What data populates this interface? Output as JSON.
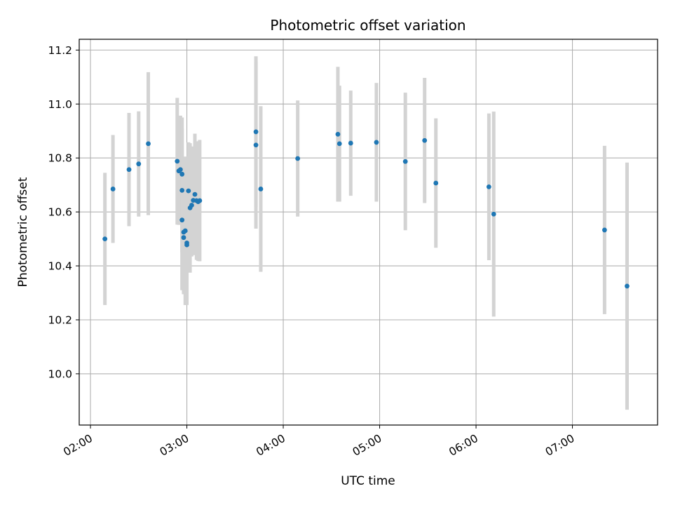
{
  "chart_data": {
    "type": "scatter",
    "title": "Photometric offset variation",
    "xlabel": "UTC time",
    "ylabel": "Photometric offset",
    "x_ticks": [
      "02:00",
      "03:00",
      "04:00",
      "05:00",
      "06:00",
      "07:00"
    ],
    "y_ticks": [
      "10.0",
      "10.2",
      "10.4",
      "10.6",
      "10.8",
      "11.0",
      "11.2"
    ],
    "xlim": [
      "01:53",
      "07:53"
    ],
    "ylim": [
      9.81,
      11.24
    ],
    "grid": true,
    "colors": {
      "points": "#1f77b4",
      "errorbars": "#d3d3d3",
      "grid": "#b0b0b0"
    },
    "points": [
      {
        "x": "02:09",
        "y": 10.5,
        "err": 0.245
      },
      {
        "x": "02:14",
        "y": 10.685,
        "err": 0.2
      },
      {
        "x": "02:24",
        "y": 10.757,
        "err": 0.21
      },
      {
        "x": "02:30",
        "y": 10.778,
        "err": 0.195
      },
      {
        "x": "02:36",
        "y": 10.853,
        "err": 0.265
      },
      {
        "x": "02:54",
        "y": 10.788,
        "err": 0.235
      },
      {
        "x": "02:55",
        "y": 10.752,
        "err": 0.2
      },
      {
        "x": "02:56",
        "y": 10.757,
        "err": 0.2
      },
      {
        "x": "02:57",
        "y": 10.74,
        "err": 0.21
      },
      {
        "x": "02:57",
        "y": 10.68,
        "err": 0.23
      },
      {
        "x": "02:57",
        "y": 10.57,
        "err": 0.26
      },
      {
        "x": "02:58",
        "y": 10.505,
        "err": 0.21
      },
      {
        "x": "02:58",
        "y": 10.525,
        "err": 0.22
      },
      {
        "x": "02:59",
        "y": 10.53,
        "err": 0.275
      },
      {
        "x": "03:00",
        "y": 10.485,
        "err": 0.23
      },
      {
        "x": "03:00",
        "y": 10.478,
        "err": 0.2
      },
      {
        "x": "03:01",
        "y": 10.678,
        "err": 0.18
      },
      {
        "x": "03:02",
        "y": 10.615,
        "err": 0.24
      },
      {
        "x": "03:03",
        "y": 10.625,
        "err": 0.19
      },
      {
        "x": "03:04",
        "y": 10.643,
        "err": 0.2
      },
      {
        "x": "03:05",
        "y": 10.665,
        "err": 0.225
      },
      {
        "x": "03:06",
        "y": 10.642,
        "err": 0.22
      },
      {
        "x": "03:07",
        "y": 10.638,
        "err": 0.22
      },
      {
        "x": "03:08",
        "y": 10.642,
        "err": 0.225
      },
      {
        "x": "03:43",
        "y": 10.897,
        "err": 0.28
      },
      {
        "x": "03:43",
        "y": 10.848,
        "err": 0.31
      },
      {
        "x": "03:46",
        "y": 10.685,
        "err": 0.307
      },
      {
        "x": "04:09",
        "y": 10.798,
        "err": 0.215
      },
      {
        "x": "04:34",
        "y": 10.888,
        "err": 0.25
      },
      {
        "x": "04:35",
        "y": 10.853,
        "err": 0.215
      },
      {
        "x": "04:42",
        "y": 10.855,
        "err": 0.195
      },
      {
        "x": "04:58",
        "y": 10.858,
        "err": 0.22
      },
      {
        "x": "05:16",
        "y": 10.787,
        "err": 0.255
      },
      {
        "x": "05:28",
        "y": 10.865,
        "err": 0.232
      },
      {
        "x": "05:35",
        "y": 10.707,
        "err": 0.24
      },
      {
        "x": "06:08",
        "y": 10.693,
        "err": 0.272
      },
      {
        "x": "06:11",
        "y": 10.592,
        "err": 0.38
      },
      {
        "x": "07:20",
        "y": 10.533,
        "err": 0.312
      },
      {
        "x": "07:34",
        "y": 10.325,
        "err": 0.458
      }
    ]
  }
}
